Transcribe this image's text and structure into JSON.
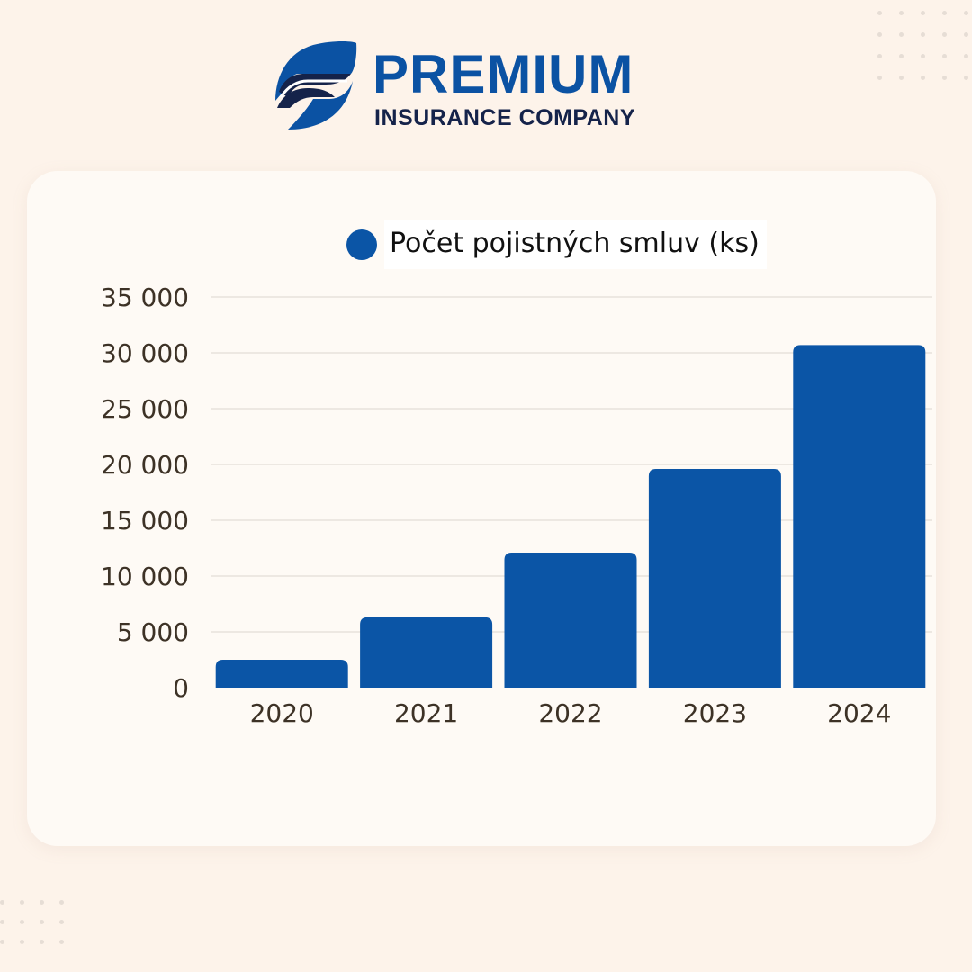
{
  "brand": {
    "name": "PREMIUM",
    "subtitle": "INSURANCE COMPANY",
    "colors": {
      "primary": "#0b52a3",
      "dark": "#15234a"
    }
  },
  "colors": {
    "background": "#fdf3ea",
    "card": "#fefaf5",
    "bar": "#0b55a6",
    "axis_text": "#3d3226",
    "gridline": "#dcd6cf"
  },
  "chart_data": {
    "type": "bar",
    "categories": [
      "2020",
      "2021",
      "2022",
      "2023",
      "2024"
    ],
    "series": [
      {
        "name": "Počet pojistných smluv (ks)",
        "values": [
          2500,
          6300,
          12100,
          19600,
          30700
        ]
      }
    ],
    "ylim": [
      0,
      35000
    ],
    "yticks": [
      0,
      5000,
      10000,
      15000,
      20000,
      25000,
      30000,
      35000
    ],
    "ytick_labels": [
      "0",
      "5 000",
      "10 000",
      "15 000",
      "20 000",
      "25 000",
      "30 000",
      "35 000"
    ],
    "grid": true,
    "legend_position": "top-center",
    "title": "",
    "xlabel": "",
    "ylabel": ""
  }
}
